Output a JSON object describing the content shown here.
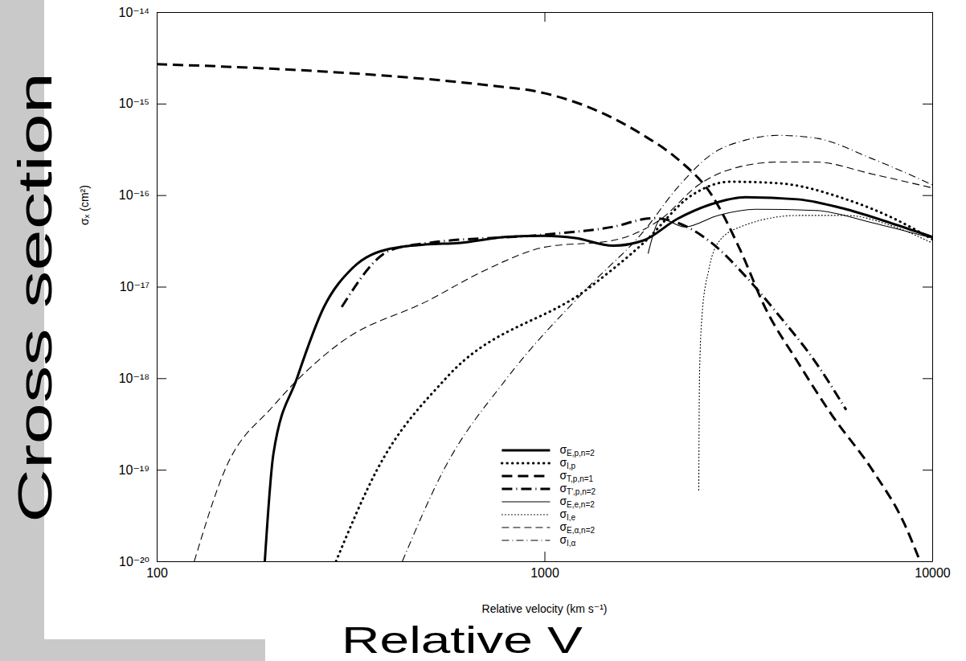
{
  "chart_data": {
    "type": "line",
    "x_label": "Relative velocity (km s⁻¹)",
    "y_label": "σₓ (cm²)",
    "annotations": [
      "Cross section",
      "Relative V"
    ],
    "log": true,
    "grid": false,
    "legend": "bottom",
    "xlim": [
      100,
      10000
    ],
    "ylim": [
      1e-20,
      1e-14
    ],
    "xticks": [
      100,
      1000,
      10000
    ],
    "yticks": [
      {
        "value": 1e-20,
        "label": "10⁻²⁰"
      },
      {
        "value": 1e-19,
        "label": "10⁻¹⁹"
      },
      {
        "value": 1e-18,
        "label": "10⁻¹⁸"
      },
      {
        "value": 1e-17,
        "label": "10⁻¹⁷"
      },
      {
        "value": 1e-16,
        "label": "10⁻¹⁶"
      },
      {
        "value": 1e-15,
        "label": "10⁻¹⁵"
      },
      {
        "value": 1e-14,
        "label": "10⁻¹⁴"
      }
    ],
    "series": [
      {
        "name": "σE,p,n=2",
        "color": "#000000",
        "line_style": "solid",
        "x": [
          190,
          200,
          230,
          270,
          320,
          400,
          500,
          600,
          800,
          1000,
          1200,
          1500,
          1800,
          2200,
          2700,
          3300,
          4500,
          6000,
          8000,
          10000
        ],
        "values": [
          1e-20,
          1.5e-19,
          1e-18,
          6e-18,
          1.6e-17,
          2.6e-17,
          2.9e-17,
          3e-17,
          3.5e-17,
          3.6e-17,
          3.4e-17,
          2.8e-17,
          3.2e-17,
          5.5e-17,
          8e-17,
          9.5e-17,
          9e-17,
          7e-17,
          4.8e-17,
          3.5e-17
        ]
      },
      {
        "name": "σI,p",
        "color": "#000000",
        "line_style": "dotted",
        "x": [
          290,
          370,
          557,
          1315,
          1800,
          2400,
          3000,
          4000,
          6000,
          8000,
          10000
        ],
        "values": [
          1e-20,
          1e-19,
          1e-18,
          1e-17,
          3e-17,
          1e-16,
          1.4e-16,
          1.35e-16,
          9e-17,
          5.5e-17,
          3.3e-17
        ]
      },
      {
        "name": "σT,p,n=1",
        "color": "#000000",
        "line_style": "dashed",
        "x": [
          100,
          200,
          400,
          700,
          1000,
          1400,
          1800,
          2200,
          2700,
          3200,
          3700,
          4500,
          5500,
          7000,
          8500,
          9300
        ],
        "values": [
          2.7e-15,
          2.4e-15,
          2e-15,
          1.6e-15,
          1.3e-15,
          8e-16,
          4.5e-16,
          2.5e-16,
          1e-16,
          2.5e-17,
          6e-18,
          1.5e-18,
          4e-19,
          1e-19,
          2.5e-20,
          1e-20
        ]
      },
      {
        "name": "σT',p,n=2",
        "color": "#000000",
        "line_style": "dashdot",
        "x": [
          300,
          400,
          500,
          1000,
          1500,
          1900,
          2200,
          2700,
          3300,
          4000,
          5000,
          6000
        ],
        "values": [
          6e-18,
          2.5e-17,
          3e-17,
          3.7e-17,
          4.5e-17,
          5.6e-17,
          5e-17,
          3e-17,
          1.3e-17,
          5e-18,
          1.5e-18,
          4.5e-19
        ]
      },
      {
        "name": "σE,e,n=2",
        "color": "#000000",
        "line_style": "solid",
        "x": [
          1850,
          2000,
          2300,
          2800,
          3500,
          5000,
          7000,
          10000
        ],
        "values": [
          2.3e-17,
          5.5e-17,
          4.5e-17,
          6e-17,
          7e-17,
          6.8e-17,
          5e-17,
          3.4e-17
        ]
      },
      {
        "name": "σI,e",
        "color": "#000000",
        "line_style": "dotted",
        "x": [
          2500,
          2510,
          2550,
          2650,
          2800,
          3200,
          4500,
          6000,
          8000,
          10000
        ],
        "values": [
          6e-20,
          1e-18,
          5e-18,
          1.5e-17,
          3e-17,
          4.5e-17,
          6e-17,
          6e-17,
          4.5e-17,
          3e-17
        ]
      },
      {
        "name": "σE,α,n=2",
        "color": "#000000",
        "line_style": "dashed",
        "x": [
          125,
          150,
          200,
          300,
          500,
          700,
          1000,
          1500,
          2000,
          2500,
          3000,
          4000,
          5000,
          7000,
          10000
        ],
        "values": [
          1e-20,
          1e-19,
          5e-19,
          2.5e-18,
          7e-18,
          1.5e-17,
          2.7e-17,
          3.2e-17,
          5.5e-17,
          1.3e-16,
          1.9e-16,
          2.3e-16,
          2.3e-16,
          1.7e-16,
          1.2e-16
        ]
      },
      {
        "name": "σI,α",
        "color": "#000000",
        "line_style": "dashdot",
        "x": [
          430,
          550,
          800,
          1300,
          1800,
          2200,
          2700,
          3300,
          4000,
          5000,
          7000,
          10000
        ],
        "values": [
          1e-20,
          1e-19,
          1e-18,
          1e-17,
          4e-17,
          1.2e-16,
          2.8e-16,
          4e-16,
          4.5e-16,
          4.2e-16,
          2.5e-16,
          1.3e-16
        ]
      }
    ]
  }
}
